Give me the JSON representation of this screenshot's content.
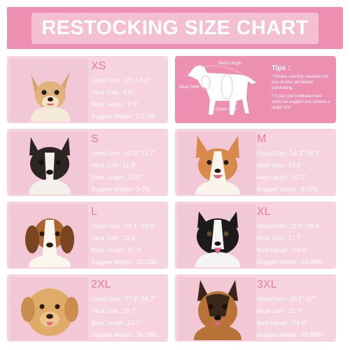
{
  "header": {
    "title": "RESTOCKING SIZE CHART"
  },
  "tips": {
    "title": "Tips :",
    "items": [
      "• Please carefully measure the size of your pet before purchasing.",
      "• If your pet is between two sizes,we suggest you choose a larger one."
    ],
    "diagram_labels": {
      "back_length": "Back Length",
      "neck_girth": "Neck Girth",
      "chest_girth": "Chest Girth"
    }
  },
  "field_labels": {
    "chest": "Chest Girth : ",
    "neck": "Neck Girth : ",
    "back": "Back Length : ",
    "weight": "Suggest Weight : "
  },
  "sizes": [
    {
      "size": "XS",
      "chest": "11\"-14.2\"",
      "neck": "9.8\"",
      "back": "7.9\"",
      "weight": "2.5-3lb",
      "dog": "chihuahua"
    },
    {
      "size": "S",
      "chest": "12.6\"-15.7\"",
      "neck": "11.4\"",
      "back": "10.6\"",
      "weight": "3-7lb",
      "dog": "french-bulldog"
    },
    {
      "size": "M",
      "chest": "14.2\"-18.1\"",
      "neck": "13.8\"",
      "back": "12.2\"",
      "weight": "6-12lb",
      "dog": "corgi"
    },
    {
      "size": "L",
      "chest": "18.1\"-22.8\"",
      "neck": "15.8\"",
      "back": "15.4\"",
      "weight": "10-22lb",
      "dog": "beagle"
    },
    {
      "size": "XL",
      "chest": "22.8\"-28.4\"",
      "neck": "17.7",
      "back": "18.9\"",
      "weight": "22-38lb",
      "dog": "border-collie"
    },
    {
      "size": "2XL",
      "chest": "27.6\"-34.7\"",
      "neck": "19.7\"",
      "back": "22.1\"",
      "weight": "38-58lb",
      "dog": "golden-retriever"
    },
    {
      "size": "3XL",
      "chest": "29.1\"-37\"",
      "neck": "21.3\"",
      "back": "24.8\"",
      "weight": "58-88lb",
      "dog": "german-shepherd"
    }
  ],
  "colors": {
    "brand_pink": "#ec8fb1",
    "card_pink": "#f7d3df",
    "size_label": "#ec7aa3"
  }
}
